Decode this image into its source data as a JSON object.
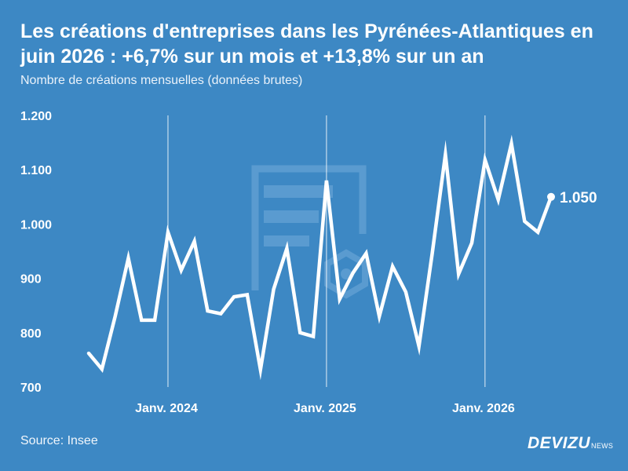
{
  "title": "Les créations d'entreprises dans les Pyrénées-Atlantiques en juin 2026 : +6,7% sur un mois et +13,8% sur un an",
  "subtitle": "Nombre de créations mensuelles (données brutes)",
  "source": "Source: Insee",
  "brand": {
    "main": "DEVIZU",
    "sub": "NEWS"
  },
  "colors": {
    "background": "#3d88c4",
    "line": "#ffffff",
    "watermark": "#5a9bd0"
  },
  "watermark_icon": "document-icon",
  "chart_data": {
    "type": "line",
    "title": "Les créations d'entreprises dans les Pyrénées-Atlantiques en juin 2026 : +6,7% sur un mois et +13,8% sur un an",
    "subtitle": "Nombre de créations mensuelles (données brutes)",
    "ylim": [
      700,
      1200
    ],
    "y_ticks": [
      700,
      800,
      900,
      1000,
      1100,
      1200
    ],
    "y_tick_labels": [
      "700",
      "800",
      "900",
      "1.000",
      "1.100",
      "1.200"
    ],
    "x_ticks": [
      "2024-01",
      "2025-01",
      "2026-01"
    ],
    "x_tick_labels": [
      "Janv. 2024",
      "Janv. 2025",
      "Janv. 2026"
    ],
    "grid": "vertical lines at x tick positions",
    "end_label": "1.050",
    "x": [
      "2023-07",
      "2023-08",
      "2023-09",
      "2023-10",
      "2023-11",
      "2023-12",
      "2024-01",
      "2024-02",
      "2024-03",
      "2024-04",
      "2024-05",
      "2024-06",
      "2024-07",
      "2024-08",
      "2024-09",
      "2024-10",
      "2024-11",
      "2024-12",
      "2025-01",
      "2025-02",
      "2025-03",
      "2025-04",
      "2025-05",
      "2025-06",
      "2025-07",
      "2025-08",
      "2025-09",
      "2025-10",
      "2025-11",
      "2025-12",
      "2026-01",
      "2026-02",
      "2026-03",
      "2026-04",
      "2026-05",
      "2026-06"
    ],
    "series": [
      {
        "values": [
          762,
          733,
          830,
          937,
          823,
          823,
          985,
          915,
          968,
          840,
          835,
          866,
          870,
          732,
          880,
          955,
          800,
          793,
          1080,
          862,
          910,
          946,
          830,
          922,
          875,
          775,
          945,
          1128,
          908,
          965,
          1118,
          1045,
          1148,
          1005,
          985,
          1050
        ]
      }
    ]
  }
}
